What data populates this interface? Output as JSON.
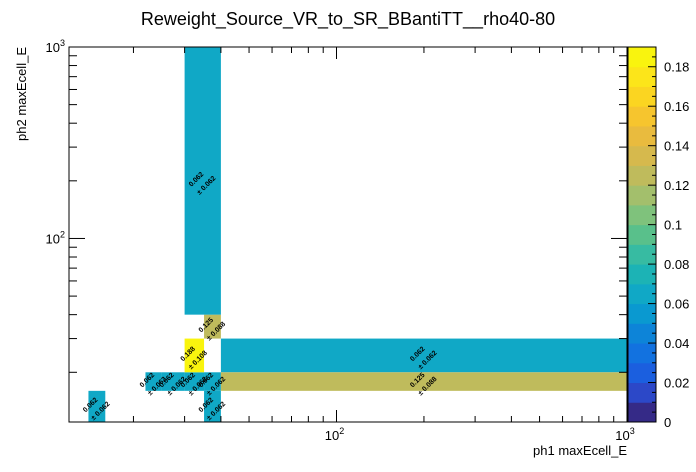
{
  "chart_data": {
    "type": "heatmap",
    "title": "Reweight_Source_VR_to_SR_BBantiTT__rho40-80",
    "xlabel": "ph1 maxEcell_E",
    "ylabel": "ph2 maxEcell_E",
    "x_scale": "log",
    "y_scale": "log",
    "xlim": [
      12,
      1000
    ],
    "ylim": [
      11,
      1000
    ],
    "x_ticks": [
      {
        "value": 100,
        "base": "10",
        "exp": "2"
      },
      {
        "value": 1000,
        "base": "10",
        "exp": "3"
      }
    ],
    "y_ticks": [
      {
        "value": 100,
        "base": "10",
        "exp": "2"
      },
      {
        "value": 1000,
        "base": "10",
        "exp": "3"
      }
    ],
    "z_range": [
      0,
      0.19
    ],
    "colorbar_ticks": [
      "0",
      "0.02",
      "0.04",
      "0.06",
      "0.08",
      "0.1",
      "0.12",
      "0.14",
      "0.16",
      "0.18"
    ],
    "colorbar_values": [
      0,
      0.02,
      0.04,
      0.06,
      0.08,
      0.1,
      0.12,
      0.14,
      0.16,
      0.18
    ],
    "cells": [
      {
        "x0": 14,
        "x1": 16,
        "y0": 11,
        "y1": 16,
        "value": 0.062,
        "label": "0.062",
        "err": "± 0.062"
      },
      {
        "x0": 22,
        "x1": 25,
        "y0": 16,
        "y1": 20,
        "value": 0.062,
        "label": "0.062",
        "err": "± 0.062"
      },
      {
        "x0": 25,
        "x1": 30,
        "y0": 16,
        "y1": 20,
        "value": 0.062,
        "label": "0.062",
        "err": "± 0.062"
      },
      {
        "x0": 30,
        "x1": 35,
        "y0": 16,
        "y1": 20,
        "value": 0.062,
        "label": "0.062",
        "err": "± 0.062"
      },
      {
        "x0": 30,
        "x1": 35,
        "y0": 20,
        "y1": 30,
        "value": 0.188,
        "label": "0.188",
        "err": "± 0.108"
      },
      {
        "x0": 35,
        "x1": 40,
        "y0": 11,
        "y1": 16,
        "value": 0.062,
        "label": "0.062",
        "err": "± 0.062"
      },
      {
        "x0": 35,
        "x1": 40,
        "y0": 16,
        "y1": 20,
        "value": 0.062,
        "label": "0.062",
        "err": "± 0.062"
      },
      {
        "x0": 35,
        "x1": 40,
        "y0": 30,
        "y1": 40,
        "value": 0.125,
        "label": "0.125",
        "err": "± 0.088"
      },
      {
        "x0": 30,
        "x1": 40,
        "y0": 40,
        "y1": 1000,
        "value": 0.062,
        "label": "0.062",
        "err": "± 0.062"
      },
      {
        "x0": 40,
        "x1": 1000,
        "y0": 20,
        "y1": 30,
        "value": 0.062,
        "label": "0.062",
        "err": "± 0.062"
      },
      {
        "x0": 40,
        "x1": 1000,
        "y0": 16,
        "y1": 20,
        "value": 0.125,
        "label": "0.125",
        "err": "± 0.088"
      }
    ]
  }
}
